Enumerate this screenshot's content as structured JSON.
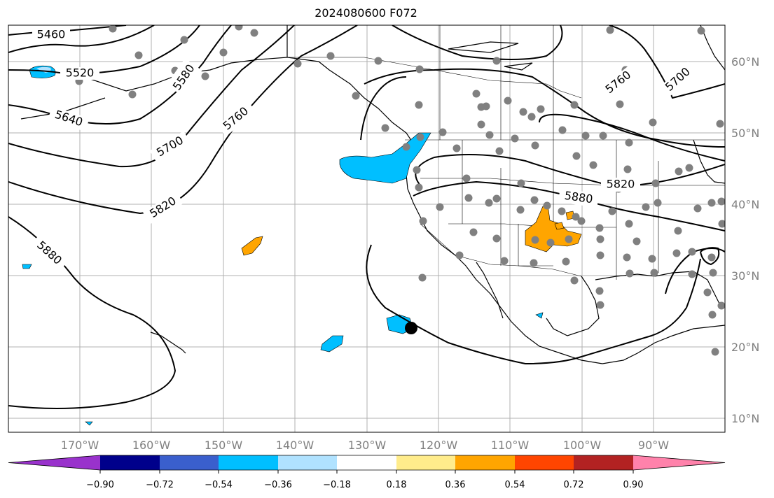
{
  "title": "2024080600 F072",
  "lat_labels": [
    "60°N",
    "50°N",
    "40°N",
    "30°N",
    "20°N",
    "10°N"
  ],
  "lon_labels": [
    "170°W",
    "160°W",
    "150°W",
    "140°W",
    "130°W",
    "120°W",
    "110°W",
    "100°W",
    "90°W"
  ],
  "contour_labels": [
    "5460",
    "5520",
    "5580",
    "5640",
    "5700",
    "5760",
    "5820",
    "5880",
    "5880",
    "5820",
    "5760",
    "5700"
  ],
  "colorbar": {
    "ticks": [
      "−0.90",
      "−0.72",
      "−0.54",
      "−0.36",
      "−0.18",
      "0.18",
      "0.36",
      "0.54",
      "0.72",
      "0.90"
    ],
    "colors": [
      "#9932CC",
      "#00008B",
      "#3A5FCD",
      "#00BFFF",
      "#B0E2FF",
      "#FFFFFF",
      "#FFEC8B",
      "#FFA500",
      "#FF4500",
      "#B22222",
      "#FF82AB"
    ]
  }
}
